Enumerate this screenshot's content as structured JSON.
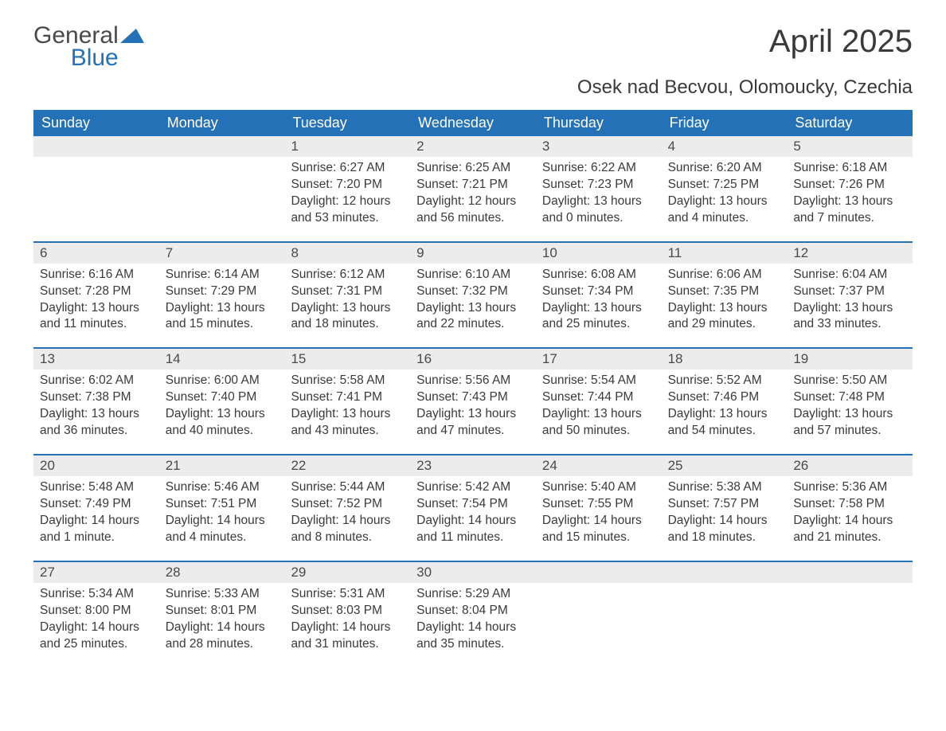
{
  "logo": {
    "text1": "General",
    "text2": "Blue"
  },
  "title": "April 2025",
  "subtitle": "Osek nad Becvou, Olomoucky, Czechia",
  "colors": {
    "header_bg": "#2471b8",
    "header_text": "#ffffff",
    "daynum_bg": "#ececec",
    "week_border": "#2471b8",
    "body_text": "#3a3a3a",
    "logo_blue": "#2471b8",
    "background": "#ffffff"
  },
  "typography": {
    "title_fontsize": 40,
    "subtitle_fontsize": 24,
    "header_fontsize": 18,
    "daynum_fontsize": 17,
    "body_fontsize": 15.5
  },
  "day_names": [
    "Sunday",
    "Monday",
    "Tuesday",
    "Wednesday",
    "Thursday",
    "Friday",
    "Saturday"
  ],
  "weeks": [
    [
      {
        "n": "",
        "lines": []
      },
      {
        "n": "",
        "lines": []
      },
      {
        "n": "1",
        "lines": [
          "Sunrise: 6:27 AM",
          "Sunset: 7:20 PM",
          "Daylight: 12 hours and 53 minutes."
        ]
      },
      {
        "n": "2",
        "lines": [
          "Sunrise: 6:25 AM",
          "Sunset: 7:21 PM",
          "Daylight: 12 hours and 56 minutes."
        ]
      },
      {
        "n": "3",
        "lines": [
          "Sunrise: 6:22 AM",
          "Sunset: 7:23 PM",
          "Daylight: 13 hours and 0 minutes."
        ]
      },
      {
        "n": "4",
        "lines": [
          "Sunrise: 6:20 AM",
          "Sunset: 7:25 PM",
          "Daylight: 13 hours and 4 minutes."
        ]
      },
      {
        "n": "5",
        "lines": [
          "Sunrise: 6:18 AM",
          "Sunset: 7:26 PM",
          "Daylight: 13 hours and 7 minutes."
        ]
      }
    ],
    [
      {
        "n": "6",
        "lines": [
          "Sunrise: 6:16 AM",
          "Sunset: 7:28 PM",
          "Daylight: 13 hours and 11 minutes."
        ]
      },
      {
        "n": "7",
        "lines": [
          "Sunrise: 6:14 AM",
          "Sunset: 7:29 PM",
          "Daylight: 13 hours and 15 minutes."
        ]
      },
      {
        "n": "8",
        "lines": [
          "Sunrise: 6:12 AM",
          "Sunset: 7:31 PM",
          "Daylight: 13 hours and 18 minutes."
        ]
      },
      {
        "n": "9",
        "lines": [
          "Sunrise: 6:10 AM",
          "Sunset: 7:32 PM",
          "Daylight: 13 hours and 22 minutes."
        ]
      },
      {
        "n": "10",
        "lines": [
          "Sunrise: 6:08 AM",
          "Sunset: 7:34 PM",
          "Daylight: 13 hours and 25 minutes."
        ]
      },
      {
        "n": "11",
        "lines": [
          "Sunrise: 6:06 AM",
          "Sunset: 7:35 PM",
          "Daylight: 13 hours and 29 minutes."
        ]
      },
      {
        "n": "12",
        "lines": [
          "Sunrise: 6:04 AM",
          "Sunset: 7:37 PM",
          "Daylight: 13 hours and 33 minutes."
        ]
      }
    ],
    [
      {
        "n": "13",
        "lines": [
          "Sunrise: 6:02 AM",
          "Sunset: 7:38 PM",
          "Daylight: 13 hours and 36 minutes."
        ]
      },
      {
        "n": "14",
        "lines": [
          "Sunrise: 6:00 AM",
          "Sunset: 7:40 PM",
          "Daylight: 13 hours and 40 minutes."
        ]
      },
      {
        "n": "15",
        "lines": [
          "Sunrise: 5:58 AM",
          "Sunset: 7:41 PM",
          "Daylight: 13 hours and 43 minutes."
        ]
      },
      {
        "n": "16",
        "lines": [
          "Sunrise: 5:56 AM",
          "Sunset: 7:43 PM",
          "Daylight: 13 hours and 47 minutes."
        ]
      },
      {
        "n": "17",
        "lines": [
          "Sunrise: 5:54 AM",
          "Sunset: 7:44 PM",
          "Daylight: 13 hours and 50 minutes."
        ]
      },
      {
        "n": "18",
        "lines": [
          "Sunrise: 5:52 AM",
          "Sunset: 7:46 PM",
          "Daylight: 13 hours and 54 minutes."
        ]
      },
      {
        "n": "19",
        "lines": [
          "Sunrise: 5:50 AM",
          "Sunset: 7:48 PM",
          "Daylight: 13 hours and 57 minutes."
        ]
      }
    ],
    [
      {
        "n": "20",
        "lines": [
          "Sunrise: 5:48 AM",
          "Sunset: 7:49 PM",
          "Daylight: 14 hours and 1 minute."
        ]
      },
      {
        "n": "21",
        "lines": [
          "Sunrise: 5:46 AM",
          "Sunset: 7:51 PM",
          "Daylight: 14 hours and 4 minutes."
        ]
      },
      {
        "n": "22",
        "lines": [
          "Sunrise: 5:44 AM",
          "Sunset: 7:52 PM",
          "Daylight: 14 hours and 8 minutes."
        ]
      },
      {
        "n": "23",
        "lines": [
          "Sunrise: 5:42 AM",
          "Sunset: 7:54 PM",
          "Daylight: 14 hours and 11 minutes."
        ]
      },
      {
        "n": "24",
        "lines": [
          "Sunrise: 5:40 AM",
          "Sunset: 7:55 PM",
          "Daylight: 14 hours and 15 minutes."
        ]
      },
      {
        "n": "25",
        "lines": [
          "Sunrise: 5:38 AM",
          "Sunset: 7:57 PM",
          "Daylight: 14 hours and 18 minutes."
        ]
      },
      {
        "n": "26",
        "lines": [
          "Sunrise: 5:36 AM",
          "Sunset: 7:58 PM",
          "Daylight: 14 hours and 21 minutes."
        ]
      }
    ],
    [
      {
        "n": "27",
        "lines": [
          "Sunrise: 5:34 AM",
          "Sunset: 8:00 PM",
          "Daylight: 14 hours and 25 minutes."
        ]
      },
      {
        "n": "28",
        "lines": [
          "Sunrise: 5:33 AM",
          "Sunset: 8:01 PM",
          "Daylight: 14 hours and 28 minutes."
        ]
      },
      {
        "n": "29",
        "lines": [
          "Sunrise: 5:31 AM",
          "Sunset: 8:03 PM",
          "Daylight: 14 hours and 31 minutes."
        ]
      },
      {
        "n": "30",
        "lines": [
          "Sunrise: 5:29 AM",
          "Sunset: 8:04 PM",
          "Daylight: 14 hours and 35 minutes."
        ]
      },
      {
        "n": "",
        "lines": []
      },
      {
        "n": "",
        "lines": []
      },
      {
        "n": "",
        "lines": []
      }
    ]
  ]
}
